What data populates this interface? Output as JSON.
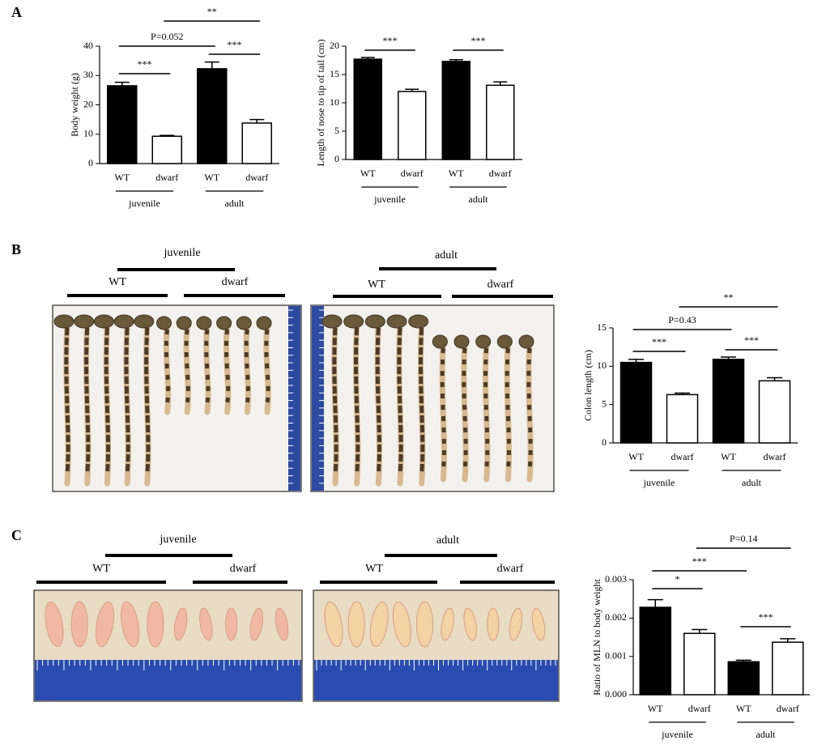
{
  "panel_labels": [
    "A",
    "B",
    "C"
  ],
  "photo_panels": [
    {
      "age": "juvenile",
      "genotypes": [
        "WT",
        "dwarf"
      ]
    },
    {
      "age": "adult",
      "genotypes": [
        "WT",
        "dwarf"
      ]
    },
    {
      "age": "juvenile",
      "genotypes": [
        "WT",
        "dwarf"
      ]
    },
    {
      "age": "adult",
      "genotypes": [
        "WT",
        "dwarf"
      ]
    }
  ],
  "chart_data": [
    {
      "type": "bar",
      "y_label": "Body weight (g)",
      "categories": [
        "WT",
        "dwarf",
        "WT",
        "dwarf"
      ],
      "groups": [
        "juvenile",
        "adult"
      ],
      "values": [
        26.5,
        9.3,
        32.3,
        13.8
      ],
      "errors": [
        1.2,
        0.3,
        2.3,
        1.2
      ],
      "colors": [
        "#000000",
        "#ffffff",
        "#000000",
        "#ffffff"
      ],
      "ylim": [
        0,
        40
      ],
      "yticks": [
        0,
        10,
        20,
        30,
        40
      ],
      "annotations": [
        {
          "text": "***",
          "bars": [
            0,
            1
          ]
        },
        {
          "text": "P=0.052",
          "bars": [
            0,
            2
          ]
        },
        {
          "text": "**",
          "bars": [
            1,
            3
          ]
        },
        {
          "text": "***",
          "bars": [
            2,
            3
          ]
        }
      ]
    },
    {
      "type": "bar",
      "y_label": "Length of nose to tip of tail (cm)",
      "categories": [
        "WT",
        "dwarf",
        "WT",
        "dwarf"
      ],
      "groups": [
        "juvenile",
        "adult"
      ],
      "values": [
        17.7,
        12.0,
        17.3,
        13.1
      ],
      "errors": [
        0.3,
        0.4,
        0.3,
        0.6
      ],
      "colors": [
        "#000000",
        "#ffffff",
        "#000000",
        "#ffffff"
      ],
      "ylim": [
        0,
        20
      ],
      "yticks": [
        0,
        5,
        10,
        15,
        20
      ],
      "annotations": [
        {
          "text": "***",
          "bars": [
            0,
            1
          ]
        },
        {
          "text": "***",
          "bars": [
            2,
            3
          ]
        }
      ]
    },
    {
      "type": "bar",
      "y_label": "Colon length (cm)",
      "categories": [
        "WT",
        "dwarf",
        "WT",
        "dwarf"
      ],
      "groups": [
        "juvenile",
        "adult"
      ],
      "values": [
        10.5,
        6.3,
        10.9,
        8.1
      ],
      "errors": [
        0.4,
        0.2,
        0.3,
        0.4
      ],
      "colors": [
        "#000000",
        "#ffffff",
        "#000000",
        "#ffffff"
      ],
      "ylim": [
        0,
        15
      ],
      "yticks": [
        0,
        5,
        10,
        15
      ],
      "annotations": [
        {
          "text": "**",
          "bars": [
            1,
            3
          ]
        },
        {
          "text": "P=0.43",
          "bars": [
            0,
            2
          ]
        },
        {
          "text": "***",
          "bars": [
            0,
            1
          ]
        },
        {
          "text": "***",
          "bars": [
            2,
            3
          ]
        }
      ]
    },
    {
      "type": "bar",
      "y_label": "Ratio of MLN to body weight",
      "categories": [
        "WT",
        "dwarf",
        "WT",
        "dwarf"
      ],
      "groups": [
        "juvenile",
        "adult"
      ],
      "values": [
        0.00228,
        0.0016,
        0.00086,
        0.00137
      ],
      "errors": [
        0.0002,
        0.0001,
        4e-05,
        9e-05
      ],
      "colors": [
        "#000000",
        "#ffffff",
        "#000000",
        "#ffffff"
      ],
      "ylim": [
        0,
        0.003
      ],
      "yticks": [
        {
          "value": 0,
          "label": "0.000"
        },
        0.001,
        0.002,
        0.003
      ],
      "annotations": [
        {
          "text": "P=0.14",
          "bars": [
            1,
            3
          ]
        },
        {
          "text": "***",
          "bars": [
            0,
            2
          ]
        },
        {
          "text": "*",
          "bars": [
            0,
            1
          ]
        },
        {
          "text": "***",
          "bars": [
            2,
            3
          ]
        }
      ]
    }
  ]
}
